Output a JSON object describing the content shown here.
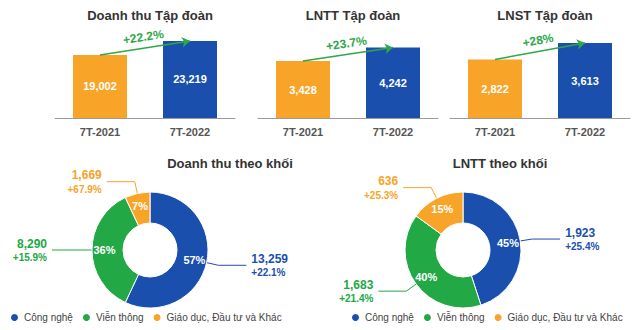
{
  "chart_data": [
    {
      "type": "bar",
      "title": "Doanh thu Tập đoàn",
      "categories": [
        "7T-2021",
        "7T-2022"
      ],
      "values": [
        19002,
        23219
      ],
      "value_labels": [
        "19,002",
        "23,219"
      ],
      "colors": [
        "#F7A428",
        "#1B4FAE"
      ],
      "annotation": "+22.2%",
      "data_labels": true,
      "tick_labels": "x",
      "grid": false
    },
    {
      "type": "bar",
      "title": "LNTT Tập đoàn",
      "categories": [
        "7T-2021",
        "7T-2022"
      ],
      "values": [
        3428,
        4242
      ],
      "value_labels": [
        "3,428",
        "4,242"
      ],
      "colors": [
        "#F7A428",
        "#1B4FAE"
      ],
      "annotation": "+23.7%",
      "data_labels": true,
      "tick_labels": "x",
      "grid": false
    },
    {
      "type": "bar",
      "title": "LNST Tập đoàn",
      "categories": [
        "7T-2021",
        "7T-2022"
      ],
      "values": [
        2822,
        3613
      ],
      "value_labels": [
        "2,822",
        "3,613"
      ],
      "colors": [
        "#F7A428",
        "#1B4FAE"
      ],
      "annotation": "+28%",
      "data_labels": true,
      "tick_labels": "x",
      "grid": false
    },
    {
      "type": "pie",
      "title": "Doanh thu theo khối",
      "categories": [
        "Công nghệ",
        "Viễn thông",
        "Giáo dục, Đầu tư và Khác"
      ],
      "values": [
        57,
        36,
        7
      ],
      "value_labels": [
        "57%",
        "36%",
        "7%"
      ],
      "colors": [
        "#1B4FAE",
        "#22A845",
        "#F7A428"
      ],
      "amounts": [
        "13,259",
        "8,290",
        "1,669"
      ],
      "growth": [
        "+22.1%",
        "+15.9%",
        "+67.9%"
      ],
      "data_labels": true,
      "legend": "bottom"
    },
    {
      "type": "pie",
      "title": "LNTT theo khối",
      "categories": [
        "Công nghệ",
        "Viễn thông",
        "Giáo dục, Đầu tư và Khác"
      ],
      "values": [
        45,
        40,
        15
      ],
      "value_labels": [
        "45%",
        "40%",
        "15%"
      ],
      "colors": [
        "#1B4FAE",
        "#22A845",
        "#F7A428"
      ],
      "amounts": [
        "1,923",
        "1,683",
        "636"
      ],
      "growth": [
        "+25.4%",
        "+21.4%",
        "+25.3%"
      ],
      "data_labels": true,
      "legend": "bottom"
    }
  ]
}
